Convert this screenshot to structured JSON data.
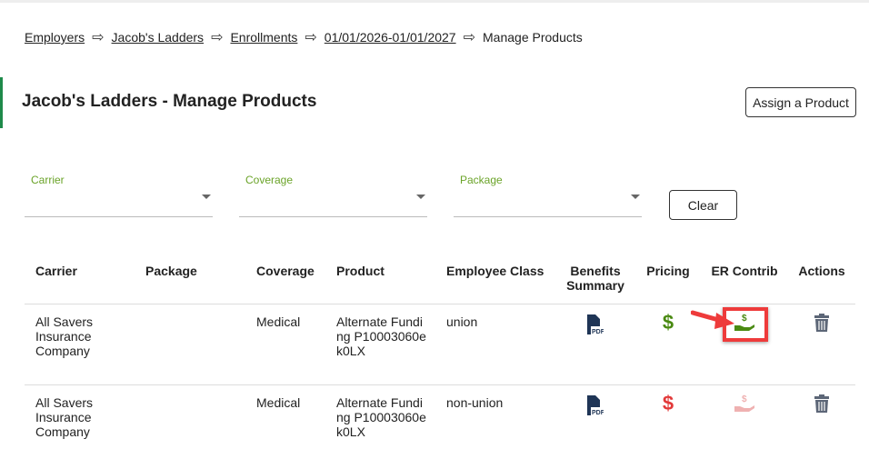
{
  "breadcrumb": [
    {
      "label": "Employers"
    },
    {
      "label": "Jacob's Ladders"
    },
    {
      "label": "Enrollments"
    },
    {
      "label": "01/01/2026-01/01/2027"
    }
  ],
  "breadcrumb_current": "Manage Products",
  "breadcrumb_separator": "⇨",
  "page_title": "Jacob's Ladders - Manage Products",
  "assign_button": "Assign a Product",
  "filters": {
    "carrier": "Carrier",
    "coverage": "Coverage",
    "package": "Package",
    "clear": "Clear"
  },
  "table": {
    "headers": [
      "Carrier",
      "Package",
      "Coverage",
      "Product",
      "Employee Class",
      "Benefits Summary",
      "Pricing",
      "ER Contrib",
      "Actions"
    ],
    "rows": [
      {
        "carrier": "All Savers Insurance Company",
        "package": "",
        "coverage": "Medical",
        "product": "Alternate Funding P10003060ek0LX",
        "employee_class": "union",
        "pricing_status": "configured",
        "er_contrib_status": "configured"
      },
      {
        "carrier": "All Savers Insurance Company",
        "package": "",
        "coverage": "Medical",
        "product": "Alternate Funding P10003060ek0LX",
        "employee_class": "non-union",
        "pricing_status": "missing",
        "er_contrib_status": "missing"
      }
    ]
  },
  "colors": {
    "accent": "#1e8a4a",
    "green": "#4a8a12",
    "red": "#e23a3a",
    "pink": "#efb1b1",
    "navy": "#1f3556",
    "trash": "#5c6677",
    "highlight": "#ee3b3b"
  }
}
